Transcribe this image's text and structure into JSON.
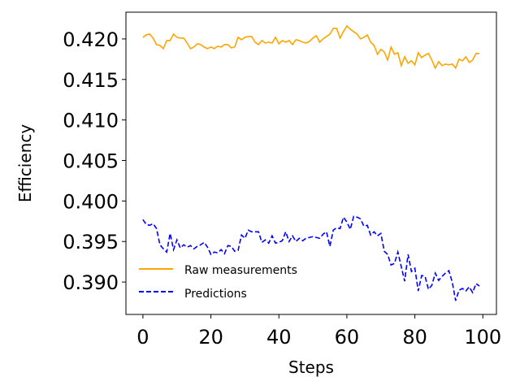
{
  "chart_data": {
    "type": "line",
    "xlabel": "Steps",
    "ylabel": "Efficiency",
    "xlim": [
      -5,
      104
    ],
    "ylim": [
      0.386,
      0.4233
    ],
    "xticks": [
      0,
      20,
      40,
      60,
      80,
      100
    ],
    "xtick_labels": [
      "0",
      "20",
      "40",
      "60",
      "80",
      "100"
    ],
    "yticks": [
      0.39,
      0.395,
      0.4,
      0.405,
      0.41,
      0.415,
      0.42
    ],
    "ytick_labels": [
      "0.390",
      "0.395",
      "0.400",
      "0.405",
      "0.410",
      "0.415",
      "0.420"
    ],
    "grid": false,
    "legend_position": "lower-left",
    "x": [
      0,
      1,
      2,
      3,
      4,
      5,
      6,
      7,
      8,
      9,
      10,
      11,
      12,
      13,
      14,
      15,
      16,
      17,
      18,
      19,
      20,
      21,
      22,
      23,
      24,
      25,
      26,
      27,
      28,
      29,
      30,
      31,
      32,
      33,
      34,
      35,
      36,
      37,
      38,
      39,
      40,
      41,
      42,
      43,
      44,
      45,
      46,
      47,
      48,
      49,
      50,
      51,
      52,
      53,
      54,
      55,
      56,
      57,
      58,
      59,
      60,
      61,
      62,
      63,
      64,
      65,
      66,
      67,
      68,
      69,
      70,
      71,
      72,
      73,
      74,
      75,
      76,
      77,
      78,
      79,
      80,
      81,
      82,
      83,
      84,
      85,
      86,
      87,
      88,
      89,
      90,
      91,
      92,
      93,
      94,
      95,
      96,
      97,
      98,
      99
    ],
    "series": [
      {
        "name": "Raw measurements",
        "color": "#FFA500",
        "style": "solid",
        "values": [
          0.4202,
          0.4205,
          0.4206,
          0.4201,
          0.4193,
          0.4192,
          0.4188,
          0.4198,
          0.4198,
          0.4206,
          0.4202,
          0.4201,
          0.4201,
          0.4195,
          0.4188,
          0.419,
          0.4194,
          0.4193,
          0.419,
          0.4188,
          0.419,
          0.4188,
          0.4191,
          0.419,
          0.4193,
          0.4193,
          0.4189,
          0.419,
          0.4202,
          0.4199,
          0.4202,
          0.4203,
          0.4203,
          0.4196,
          0.4193,
          0.4198,
          0.4195,
          0.4196,
          0.4195,
          0.4202,
          0.4194,
          0.4198,
          0.4196,
          0.4198,
          0.4193,
          0.4199,
          0.4198,
          0.4196,
          0.4195,
          0.4197,
          0.4201,
          0.4204,
          0.4196,
          0.42,
          0.4203,
          0.4206,
          0.4213,
          0.4213,
          0.4201,
          0.4209,
          0.4216,
          0.4212,
          0.4209,
          0.4206,
          0.42,
          0.4202,
          0.4205,
          0.4196,
          0.4192,
          0.4181,
          0.4187,
          0.4184,
          0.4174,
          0.419,
          0.4181,
          0.4183,
          0.4167,
          0.4178,
          0.417,
          0.4173,
          0.4168,
          0.4183,
          0.4177,
          0.418,
          0.4182,
          0.4174,
          0.4164,
          0.4172,
          0.4167,
          0.4169,
          0.4168,
          0.4169,
          0.4164,
          0.4175,
          0.4173,
          0.4178,
          0.4171,
          0.4174,
          0.4182,
          0.4182
        ]
      },
      {
        "name": "Predictions",
        "color": "#0000FF",
        "style": "dashed",
        "values": [
          0.3977,
          0.3971,
          0.397,
          0.3972,
          0.3966,
          0.3946,
          0.3941,
          0.3937,
          0.396,
          0.394,
          0.3952,
          0.3942,
          0.3946,
          0.3943,
          0.3945,
          0.3941,
          0.3944,
          0.3946,
          0.3949,
          0.3943,
          0.3934,
          0.3937,
          0.3936,
          0.394,
          0.3935,
          0.3945,
          0.3944,
          0.3938,
          0.3939,
          0.3958,
          0.3954,
          0.3964,
          0.3962,
          0.3962,
          0.3962,
          0.3949,
          0.3952,
          0.3948,
          0.3957,
          0.3948,
          0.3949,
          0.3951,
          0.3962,
          0.395,
          0.3957,
          0.395,
          0.3954,
          0.3951,
          0.3954,
          0.3955,
          0.3956,
          0.3955,
          0.3954,
          0.3959,
          0.3962,
          0.3944,
          0.3964,
          0.3967,
          0.3966,
          0.398,
          0.3974,
          0.3965,
          0.3981,
          0.398,
          0.3978,
          0.3969,
          0.397,
          0.3958,
          0.3962,
          0.3957,
          0.396,
          0.3938,
          0.3934,
          0.3921,
          0.3923,
          0.3937,
          0.3919,
          0.3901,
          0.3934,
          0.3913,
          0.3917,
          0.3889,
          0.3908,
          0.3907,
          0.3891,
          0.3896,
          0.3911,
          0.3902,
          0.3907,
          0.3911,
          0.3914,
          0.39,
          0.3877,
          0.389,
          0.3892,
          0.3889,
          0.3894,
          0.3887,
          0.3898,
          0.3895
        ]
      }
    ]
  }
}
